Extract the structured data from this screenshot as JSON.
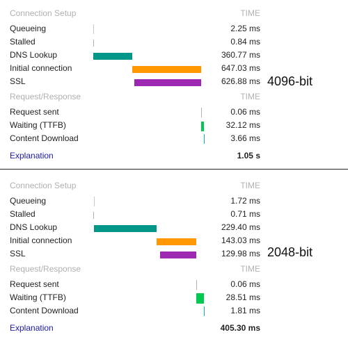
{
  "panels": [
    {
      "tag": "4096-bit",
      "setup_header": "Connection Setup",
      "time_header": "TIME",
      "queueing": {
        "label": "Queueing",
        "value": "2.25 ms"
      },
      "stalled": {
        "label": "Stalled",
        "value": "0.84 ms"
      },
      "dns": {
        "label": "DNS Lookup",
        "value": "360.77 ms"
      },
      "initial": {
        "label": "Initial connection",
        "value": "647.03 ms"
      },
      "ssl": {
        "label": "SSL",
        "value": "626.88 ms"
      },
      "reqresp_header": "Request/Response",
      "time_header2": "TIME",
      "request": {
        "label": "Request sent",
        "value": "0.06 ms"
      },
      "waiting": {
        "label": "Waiting (TTFB)",
        "value": "32.12 ms"
      },
      "download": {
        "label": "Content Download",
        "value": "3.66 ms"
      },
      "explanation": "Explanation",
      "total": "1.05 s"
    },
    {
      "tag": "2048-bit",
      "setup_header": "Connection Setup",
      "time_header": "TIME",
      "queueing": {
        "label": "Queueing",
        "value": "1.72 ms"
      },
      "stalled": {
        "label": "Stalled",
        "value": "0.71 ms"
      },
      "dns": {
        "label": "DNS Lookup",
        "value": "229.40 ms"
      },
      "initial": {
        "label": "Initial connection",
        "value": "143.03 ms"
      },
      "ssl": {
        "label": "SSL",
        "value": "129.98 ms"
      },
      "reqresp_header": "Request/Response",
      "time_header2": "TIME",
      "request": {
        "label": "Request sent",
        "value": "0.06 ms"
      },
      "waiting": {
        "label": "Waiting (TTFB)",
        "value": "28.51 ms"
      },
      "download": {
        "label": "Content Download",
        "value": "1.81 ms"
      },
      "explanation": "Explanation",
      "total": "405.30 ms"
    }
  ],
  "colors": {
    "queueing": "#c8c8c8",
    "stalled": "#c8c8c8",
    "dns": "#009688",
    "initial": "#ff9800",
    "ssl": "#9c27b0",
    "request": "#b0b0b0",
    "waiting": "#00c853",
    "download": "#03a9f4"
  }
}
